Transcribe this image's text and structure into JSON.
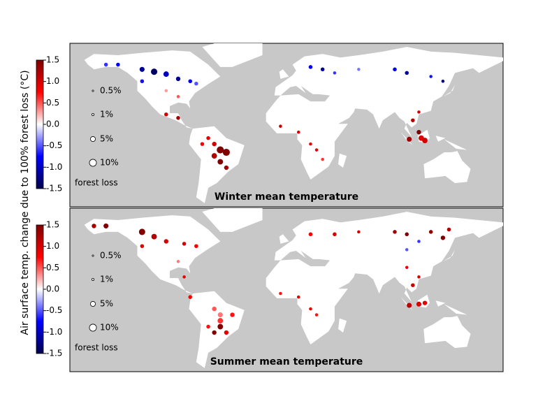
{
  "y_label": "Air surface temp. change due to 100% forest loss  (°C)",
  "colorbar": {
    "lim": [
      -1.5,
      1.5
    ],
    "ticks": [
      1.5,
      {
        "value": 1.0,
        "label": "1.0"
      },
      0.5,
      {
        "value": 0.0,
        "label": "0.0"
      },
      -0.5,
      {
        "value": -1.0,
        "label": "-1.0"
      },
      -1.5
    ]
  },
  "legend": {
    "title": "forest loss",
    "items": [
      {
        "label": "0.5%",
        "value": 0.5
      },
      {
        "label": "1%",
        "value": 1
      },
      {
        "label": "5%",
        "value": 5
      },
      {
        "label": "10%",
        "value": 10
      }
    ]
  },
  "panels": [
    {
      "title": "Winter mean temperature",
      "dots": [
        [
          -150,
          62,
          -0.6,
          3
        ],
        [
          -140,
          62,
          -0.8,
          3
        ],
        [
          -120,
          58,
          -1.2,
          5
        ],
        [
          -110,
          56,
          -1.4,
          8
        ],
        [
          -100,
          54,
          -1.0,
          6
        ],
        [
          -90,
          50,
          -1.2,
          4
        ],
        [
          -80,
          48,
          -0.8,
          3
        ],
        [
          -75,
          46,
          -0.5,
          3
        ],
        [
          -120,
          48,
          -0.7,
          3
        ],
        [
          -100,
          40,
          0.3,
          2
        ],
        [
          -90,
          35,
          0.5,
          2
        ],
        [
          -100,
          20,
          1.0,
          3
        ],
        [
          -90,
          17,
          1.3,
          3
        ],
        [
          -60,
          -5,
          1.0,
          4
        ],
        [
          -55,
          -10,
          1.5,
          10
        ],
        [
          -50,
          -12,
          1.5,
          10
        ],
        [
          -60,
          -15,
          1.2,
          6
        ],
        [
          -55,
          -20,
          1.5,
          6
        ],
        [
          -50,
          -25,
          1.3,
          4
        ],
        [
          -70,
          -5,
          0.8,
          3
        ],
        [
          -65,
          0,
          0.9,
          3
        ],
        [
          20,
          60,
          -0.8,
          3
        ],
        [
          30,
          58,
          -1.2,
          3
        ],
        [
          40,
          55,
          -0.6,
          2
        ],
        [
          60,
          58,
          -0.4,
          2
        ],
        [
          90,
          58,
          -0.8,
          3
        ],
        [
          100,
          55,
          -1.2,
          3
        ],
        [
          120,
          52,
          -0.7,
          2
        ],
        [
          130,
          48,
          -1.3,
          2
        ],
        [
          110,
          22,
          1.0,
          2
        ],
        [
          105,
          15,
          1.2,
          3
        ],
        [
          110,
          5,
          1.5,
          4
        ],
        [
          112,
          0,
          0.9,
          6
        ],
        [
          115,
          -2,
          1.0,
          6
        ],
        [
          102,
          -1,
          1.3,
          5
        ],
        [
          20,
          -5,
          0.8,
          2
        ],
        [
          25,
          -10,
          0.9,
          2
        ],
        [
          10,
          5,
          1.0,
          2
        ],
        [
          30,
          -18,
          0.6,
          2
        ],
        [
          -5,
          10,
          1.1,
          2
        ]
      ]
    },
    {
      "title": "Summer mean temperature",
      "dots": [
        [
          -160,
          65,
          1.3,
          4
        ],
        [
          -150,
          65,
          1.5,
          5
        ],
        [
          -120,
          60,
          1.5,
          8
        ],
        [
          -110,
          56,
          1.2,
          6
        ],
        [
          -100,
          52,
          1.0,
          4
        ],
        [
          -85,
          50,
          1.0,
          3
        ],
        [
          -75,
          48,
          0.8,
          3
        ],
        [
          -120,
          48,
          0.9,
          3
        ],
        [
          -90,
          35,
          0.4,
          2
        ],
        [
          -85,
          22,
          0.9,
          2
        ],
        [
          -80,
          5,
          0.8,
          3
        ],
        [
          -60,
          -5,
          0.5,
          4
        ],
        [
          -55,
          -10,
          0.4,
          5
        ],
        [
          -45,
          -10,
          0.7,
          4
        ],
        [
          -55,
          -15,
          0.6,
          6
        ],
        [
          -55,
          -20,
          1.5,
          6
        ],
        [
          -60,
          -25,
          1.5,
          4
        ],
        [
          -50,
          -25,
          0.9,
          4
        ],
        [
          -65,
          -20,
          0.7,
          3
        ],
        [
          20,
          58,
          0.8,
          3
        ],
        [
          40,
          58,
          1.0,
          3
        ],
        [
          60,
          60,
          1.0,
          2
        ],
        [
          90,
          60,
          1.3,
          3
        ],
        [
          100,
          58,
          1.5,
          3
        ],
        [
          120,
          60,
          1.4,
          3
        ],
        [
          130,
          55,
          1.5,
          4
        ],
        [
          135,
          62,
          1.2,
          3
        ],
        [
          110,
          52,
          -0.6,
          2
        ],
        [
          100,
          30,
          0.8,
          2
        ],
        [
          110,
          22,
          1.0,
          2
        ],
        [
          105,
          15,
          1.1,
          3
        ],
        [
          110,
          -1,
          1.0,
          5
        ],
        [
          102,
          -2,
          1.1,
          5
        ],
        [
          115,
          0,
          0.9,
          4
        ],
        [
          25,
          -10,
          0.7,
          2
        ],
        [
          20,
          -5,
          0.8,
          2
        ],
        [
          10,
          5,
          0.9,
          2
        ],
        [
          -5,
          8,
          0.7,
          2
        ],
        [
          100,
          45,
          -0.5,
          2
        ]
      ]
    }
  ]
}
